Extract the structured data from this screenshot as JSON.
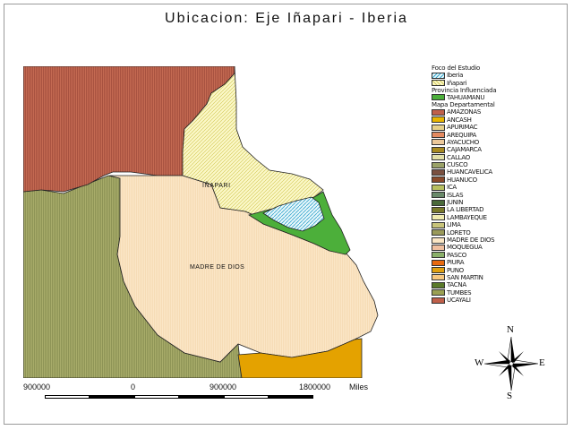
{
  "title": "Ubicacion: Eje Iñapari - Iberia",
  "map": {
    "labels": {
      "inapari": "IÑAPARI",
      "madre_de_dios": "MADRE DE DIOS"
    }
  },
  "legend": {
    "foco_heading": "Foco del Estudio",
    "foco_items": [
      "Iberia",
      "Iñapari"
    ],
    "provincia_heading": "Provincia Influenciada",
    "provincia_items": [
      {
        "label": "TAHUAMANU",
        "color": "#4caf3a"
      }
    ],
    "mapa_heading": "Mapa Departamental",
    "departamentos": [
      {
        "label": "AMAZONAS",
        "color": "#c0604a"
      },
      {
        "label": "ANCASH",
        "color": "#e8b500"
      },
      {
        "label": "APURIMAC",
        "color": "#e5d08a"
      },
      {
        "label": "AREQUIPA",
        "color": "#e48a60"
      },
      {
        "label": "AYACUCHO",
        "color": "#ecc89a"
      },
      {
        "label": "CAJAMARCA",
        "color": "#a88a20"
      },
      {
        "label": "CALLAO",
        "color": "#e2e0a8"
      },
      {
        "label": "CUSCO",
        "color": "#9aa268"
      },
      {
        "label": "HUANCAVELICA",
        "color": "#7a5040"
      },
      {
        "label": "HUANUCO",
        "color": "#8a4a2a"
      },
      {
        "label": "ICA",
        "color": "#b8c060"
      },
      {
        "label": "ISLAS",
        "color": "#6a8a6a"
      },
      {
        "label": "JUNIN",
        "color": "#4a6a3a"
      },
      {
        "label": "LA LIBERTAD",
        "color": "#7a7a2a"
      },
      {
        "label": "LAMBAYEQUE",
        "color": "#f0ecb0"
      },
      {
        "label": "LIMA",
        "color": "#c8c47a"
      },
      {
        "label": "LORETO",
        "color": "#9a9a5a"
      },
      {
        "label": "MADRE DE DIOS",
        "color": "#fbe6c4"
      },
      {
        "label": "MOQUEGUA",
        "color": "#f0c0a0"
      },
      {
        "label": "PASCO",
        "color": "#8ab06a"
      },
      {
        "label": "PIURA",
        "color": "#e86a10"
      },
      {
        "label": "PUNO",
        "color": "#e0a010"
      },
      {
        "label": "SAN MARTIN",
        "color": "#f6c880"
      },
      {
        "label": "TACNA",
        "color": "#5a7a2a"
      },
      {
        "label": "TUMBES",
        "color": "#9aa052"
      },
      {
        "label": "UCAYALI",
        "color": "#c0604a"
      }
    ]
  },
  "scale": {
    "ticks": [
      "900000",
      "0",
      "900000",
      "1800000"
    ],
    "unit": "Miles"
  },
  "compass": {
    "n": "N",
    "s": "S",
    "e": "E",
    "w": "W"
  }
}
